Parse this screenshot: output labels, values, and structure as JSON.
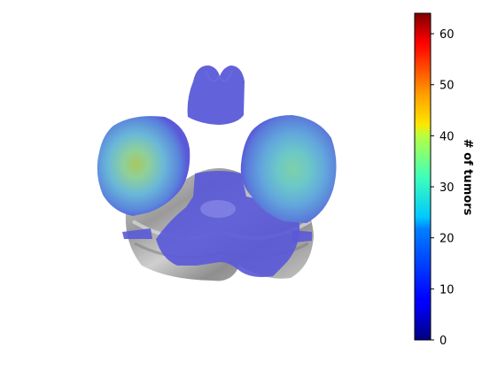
{
  "colorbar": {
    "label": "# of tumors",
    "range": [
      0,
      64
    ],
    "ticks": [
      {
        "value": 0,
        "label": "0"
      },
      {
        "value": 10,
        "label": "10"
      },
      {
        "value": 20,
        "label": "20"
      },
      {
        "value": 30,
        "label": "30"
      },
      {
        "value": 40,
        "label": "40"
      },
      {
        "value": 50,
        "label": "50"
      },
      {
        "value": 60,
        "label": "60"
      }
    ],
    "colormap": "jet"
  },
  "image": {
    "description_icon": "brain-axial-slice-heatmap",
    "overlay_color": "#5a5ad8"
  }
}
